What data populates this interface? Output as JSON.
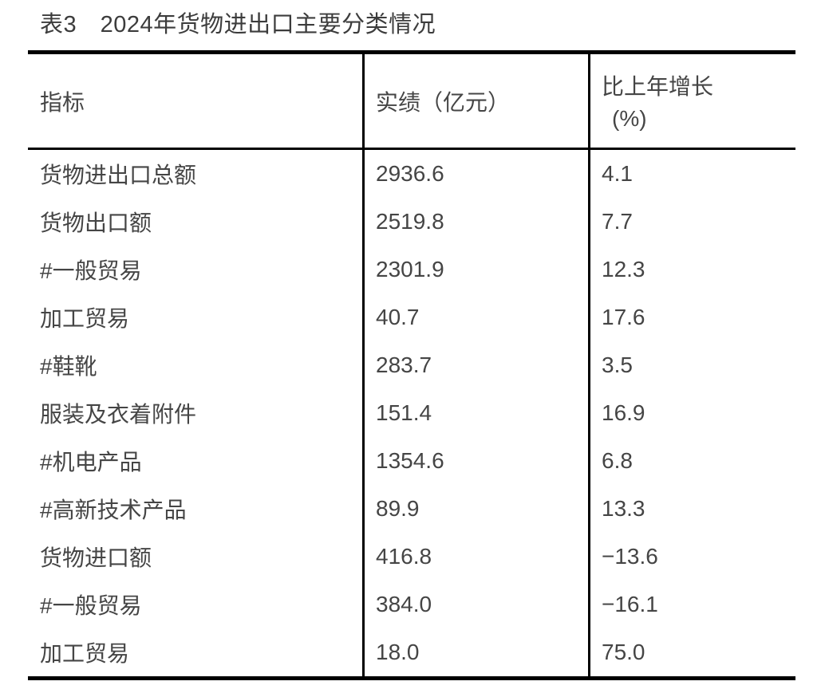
{
  "title": "表3　2024年货物进出口主要分类情况",
  "colors": {
    "background": "#ffffff",
    "text": "#454545",
    "title_text": "#3c3c3c",
    "rule": "#000000"
  },
  "table": {
    "header": {
      "indicator": "指标",
      "value": "实绩（亿元）",
      "growth_line1": "比上年增长",
      "growth_line2": "(%)"
    },
    "rows": [
      {
        "indicator": "货物进出口总额",
        "value": "2936.6",
        "growth": "4.1"
      },
      {
        "indicator": "货物出口额",
        "value": "2519.8",
        "growth": "7.7"
      },
      {
        "indicator": "#一般贸易",
        "value": "2301.9",
        "growth": "12.3"
      },
      {
        "indicator": "加工贸易",
        "value": "40.7",
        "growth": "17.6"
      },
      {
        "indicator": "#鞋靴",
        "value": "283.7",
        "growth": "3.5"
      },
      {
        "indicator": "服装及衣着附件",
        "value": "151.4",
        "growth": "16.9"
      },
      {
        "indicator": "#机电产品",
        "value": "1354.6",
        "growth": "6.8"
      },
      {
        "indicator": "#高新技术产品",
        "value": "89.9",
        "growth": "13.3"
      },
      {
        "indicator": "货物进口额",
        "value": "416.8",
        "growth": "−13.6"
      },
      {
        "indicator": "#一般贸易",
        "value": "384.0",
        "growth": "−16.1"
      },
      {
        "indicator": "加工贸易",
        "value": "18.0",
        "growth": "75.0"
      }
    ]
  }
}
